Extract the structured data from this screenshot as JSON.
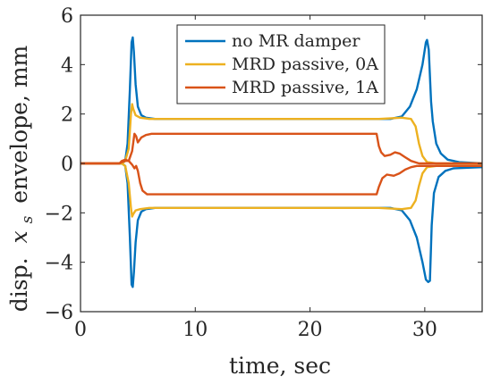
{
  "chart_data": {
    "type": "line",
    "xlabel": "time, sec",
    "ylabel_prefix": "disp.",
    "ylabel_var": "x",
    "ylabel_sub": "s",
    "ylabel_suffix": "envelope, mm",
    "xlim": [
      0,
      35
    ],
    "ylim": [
      -6,
      6
    ],
    "xticks": [
      0,
      10,
      20,
      30
    ],
    "yticks": [
      -6,
      -4,
      -2,
      0,
      2,
      4,
      6
    ],
    "grid": false,
    "legend_position": "top-center",
    "series": [
      {
        "name": "no MR damper",
        "color": "#0072BD",
        "lines": [
          [
            [
              0,
              0
            ],
            [
              3.6,
              0
            ],
            [
              3.9,
              0.1
            ],
            [
              4.1,
              0.8
            ],
            [
              4.3,
              3.0
            ],
            [
              4.45,
              4.9
            ],
            [
              4.55,
              5.1
            ],
            [
              4.65,
              4.5
            ],
            [
              4.8,
              3.2
            ],
            [
              5.0,
              2.3
            ],
            [
              5.3,
              1.95
            ],
            [
              5.7,
              1.85
            ],
            [
              6.5,
              1.8
            ],
            [
              20,
              1.8
            ],
            [
              27,
              1.8
            ],
            [
              28,
              1.9
            ],
            [
              28.7,
              2.3
            ],
            [
              29.3,
              3.0
            ],
            [
              29.8,
              4.0
            ],
            [
              30.1,
              4.9
            ],
            [
              30.2,
              5.0
            ],
            [
              30.35,
              4.6
            ],
            [
              30.55,
              2.5
            ],
            [
              30.7,
              1.7
            ],
            [
              31,
              0.8
            ],
            [
              31.4,
              0.4
            ],
            [
              32,
              0.15
            ],
            [
              33,
              0.05
            ],
            [
              35,
              0.0
            ]
          ],
          [
            [
              0,
              0
            ],
            [
              3.6,
              0
            ],
            [
              3.9,
              -0.1
            ],
            [
              4.1,
              -0.8
            ],
            [
              4.3,
              -3.0
            ],
            [
              4.45,
              -4.9
            ],
            [
              4.55,
              -5.0
            ],
            [
              4.65,
              -4.4
            ],
            [
              4.8,
              -3.2
            ],
            [
              5.0,
              -2.3
            ],
            [
              5.3,
              -1.95
            ],
            [
              5.7,
              -1.85
            ],
            [
              6.5,
              -1.8
            ],
            [
              20,
              -1.8
            ],
            [
              27,
              -1.8
            ],
            [
              28,
              -1.9
            ],
            [
              28.7,
              -2.3
            ],
            [
              29.3,
              -3.0
            ],
            [
              29.8,
              -4.0
            ],
            [
              30.1,
              -4.7
            ],
            [
              30.3,
              -4.8
            ],
            [
              30.45,
              -4.75
            ],
            [
              30.6,
              -2.5
            ],
            [
              30.8,
              -1.2
            ],
            [
              31.2,
              -0.55
            ],
            [
              31.8,
              -0.3
            ],
            [
              32.5,
              -0.2
            ],
            [
              35,
              -0.15
            ]
          ]
        ]
      },
      {
        "name": "MRD passive, 0A",
        "color": "#EDB120",
        "lines": [
          [
            [
              0,
              0
            ],
            [
              3.6,
              0
            ],
            [
              3.9,
              0.1
            ],
            [
              4.2,
              0.6
            ],
            [
              4.4,
              2.0
            ],
            [
              4.5,
              2.4
            ],
            [
              4.6,
              2.2
            ],
            [
              4.8,
              1.95
            ],
            [
              5.2,
              1.85
            ],
            [
              6.0,
              1.8
            ],
            [
              20,
              1.8
            ],
            [
              26,
              1.8
            ],
            [
              28,
              1.85
            ],
            [
              28.8,
              1.8
            ],
            [
              29.2,
              1.5
            ],
            [
              29.5,
              0.8
            ],
            [
              29.8,
              0.3
            ],
            [
              30.2,
              0.05
            ],
            [
              31,
              0.0
            ],
            [
              35,
              0.0
            ]
          ],
          [
            [
              0,
              0
            ],
            [
              3.6,
              0
            ],
            [
              3.9,
              -0.1
            ],
            [
              4.2,
              -0.8
            ],
            [
              4.4,
              -1.8
            ],
            [
              4.5,
              -2.15
            ],
            [
              4.6,
              -2.05
            ],
            [
              4.8,
              -1.9
            ],
            [
              5.2,
              -1.85
            ],
            [
              6.0,
              -1.8
            ],
            [
              20,
              -1.8
            ],
            [
              26,
              -1.8
            ],
            [
              28,
              -1.85
            ],
            [
              28.8,
              -1.8
            ],
            [
              29.2,
              -1.5
            ],
            [
              29.5,
              -0.9
            ],
            [
              29.8,
              -0.4
            ],
            [
              30.2,
              -0.15
            ],
            [
              31,
              -0.1
            ],
            [
              35,
              -0.1
            ]
          ]
        ]
      },
      {
        "name": "MRD passive, 1A",
        "color": "#D95319",
        "lines": [
          [
            [
              0,
              0
            ],
            [
              3.4,
              0
            ],
            [
              3.6,
              0.1
            ],
            [
              3.9,
              0.15
            ],
            [
              4.2,
              0.1
            ],
            [
              4.5,
              0.5
            ],
            [
              4.7,
              1.2
            ],
            [
              4.85,
              1.1
            ],
            [
              5.0,
              0.85
            ],
            [
              5.3,
              1.05
            ],
            [
              5.7,
              1.15
            ],
            [
              6.2,
              1.2
            ],
            [
              20,
              1.2
            ],
            [
              25.8,
              1.2
            ],
            [
              26.0,
              0.7
            ],
            [
              26.2,
              0.45
            ],
            [
              26.5,
              0.3
            ],
            [
              27.0,
              0.35
            ],
            [
              27.4,
              0.45
            ],
            [
              27.8,
              0.4
            ],
            [
              28.3,
              0.25
            ],
            [
              28.8,
              0.1
            ],
            [
              29.5,
              0.0
            ],
            [
              35,
              0.0
            ]
          ],
          [
            [
              0,
              0
            ],
            [
              3.4,
              0
            ],
            [
              3.6,
              0.05
            ],
            [
              3.9,
              0.1
            ],
            [
              4.2,
              0.1
            ],
            [
              4.5,
              -0.05
            ],
            [
              4.7,
              -0.2
            ],
            [
              4.85,
              -0.1
            ],
            [
              5.0,
              -0.3
            ],
            [
              5.2,
              -0.8
            ],
            [
              5.4,
              -1.1
            ],
            [
              5.8,
              -1.25
            ],
            [
              6.5,
              -1.25
            ],
            [
              20,
              -1.25
            ],
            [
              25.8,
              -1.25
            ],
            [
              26.0,
              -0.95
            ],
            [
              26.3,
              -0.6
            ],
            [
              26.7,
              -0.45
            ],
            [
              27.3,
              -0.5
            ],
            [
              27.8,
              -0.4
            ],
            [
              28.3,
              -0.25
            ],
            [
              28.8,
              -0.15
            ],
            [
              29.3,
              -0.1
            ],
            [
              35,
              -0.1
            ]
          ]
        ]
      }
    ]
  }
}
